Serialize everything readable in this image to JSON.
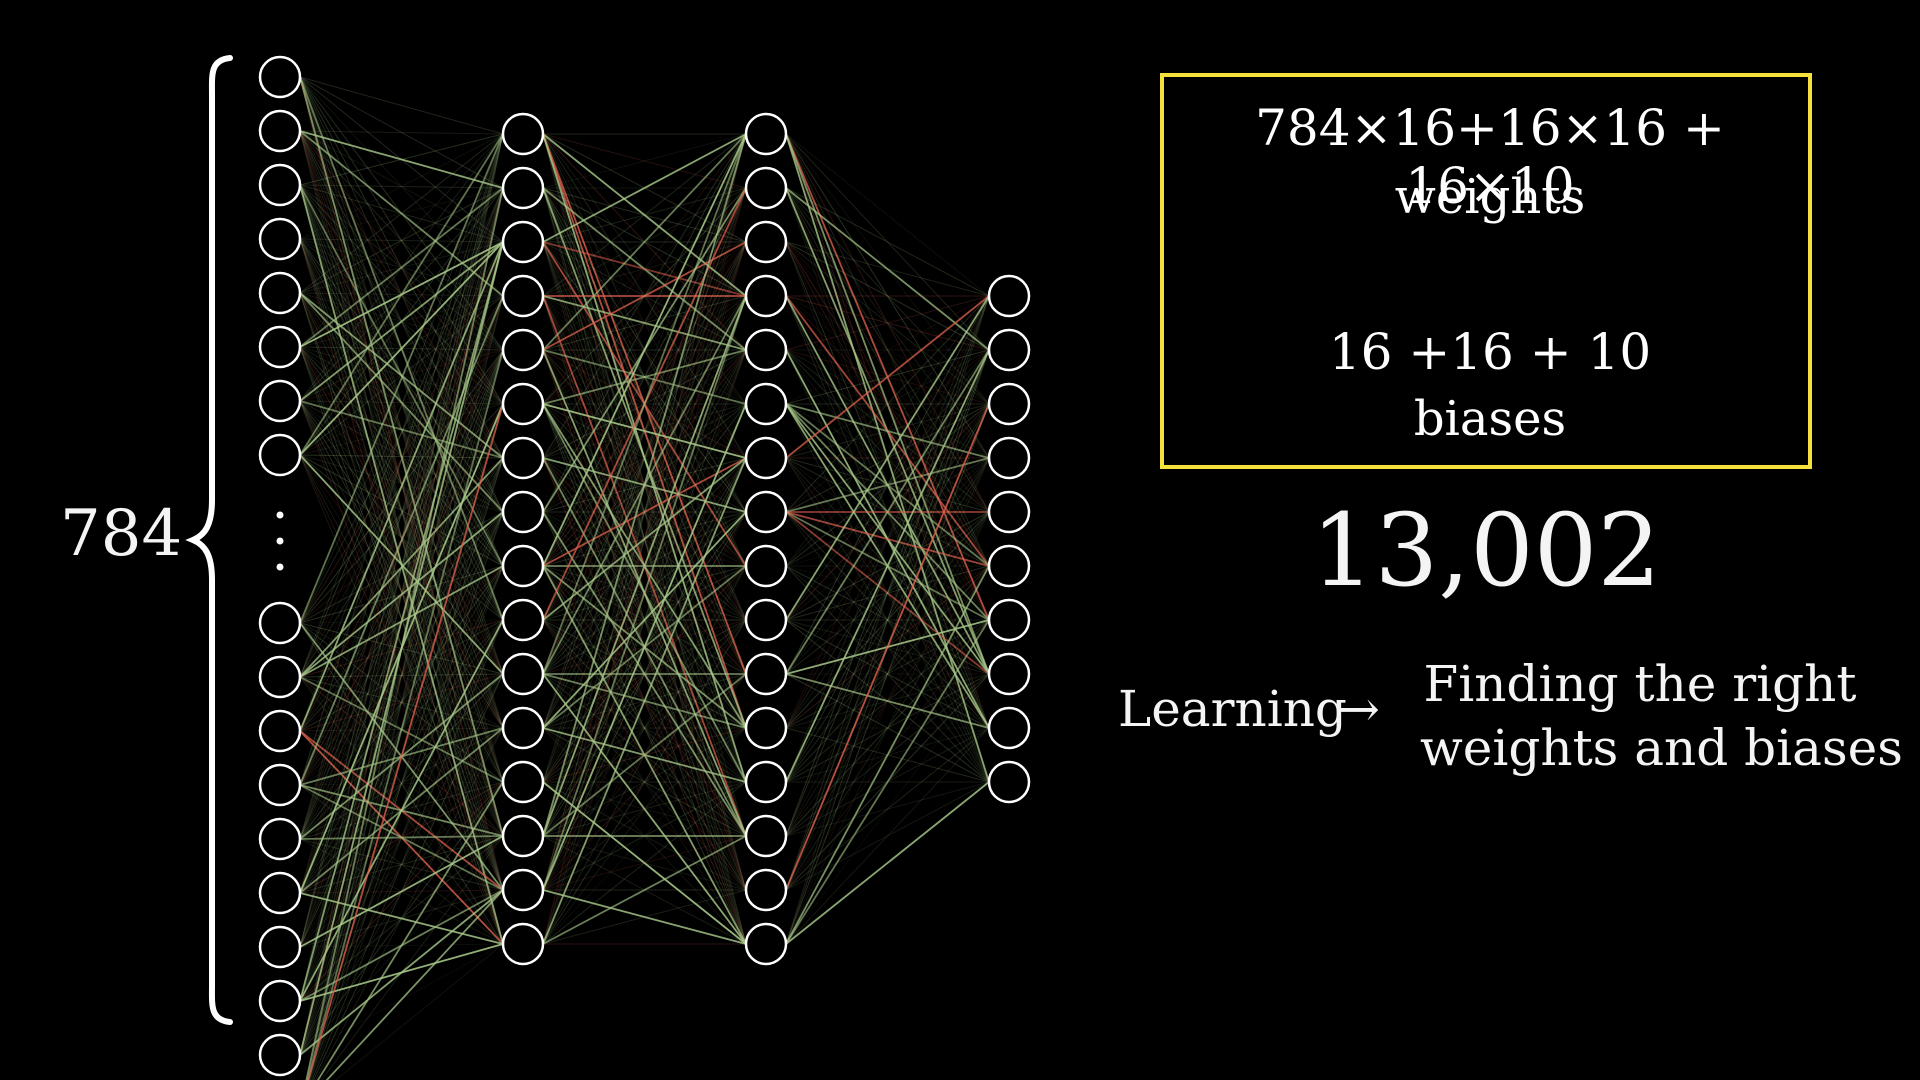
{
  "network": {
    "input_label": "784",
    "layers": [
      {
        "visible_neurons": 18,
        "ellipsis_after": 8
      },
      {
        "visible_neurons": 16
      },
      {
        "visible_neurons": 16
      },
      {
        "visible_neurons": 10
      }
    ],
    "colors": {
      "neuron_stroke": "#ffffff",
      "positive_edge": "#a8c98a",
      "negative_edge": "#e0614e",
      "brace": "#ffffff"
    }
  },
  "formula_box": {
    "border_color": "#f5e13b",
    "weights_formula": "784×16+16×16 + 16×10",
    "weights_label": "weights",
    "biases_formula": "16 +16 + 10",
    "biases_label": "biases"
  },
  "total": "13,002",
  "learning": {
    "label": "Learning",
    "arrow": "→",
    "description_line1": "Finding the right",
    "description_line2": "weights and biases"
  }
}
